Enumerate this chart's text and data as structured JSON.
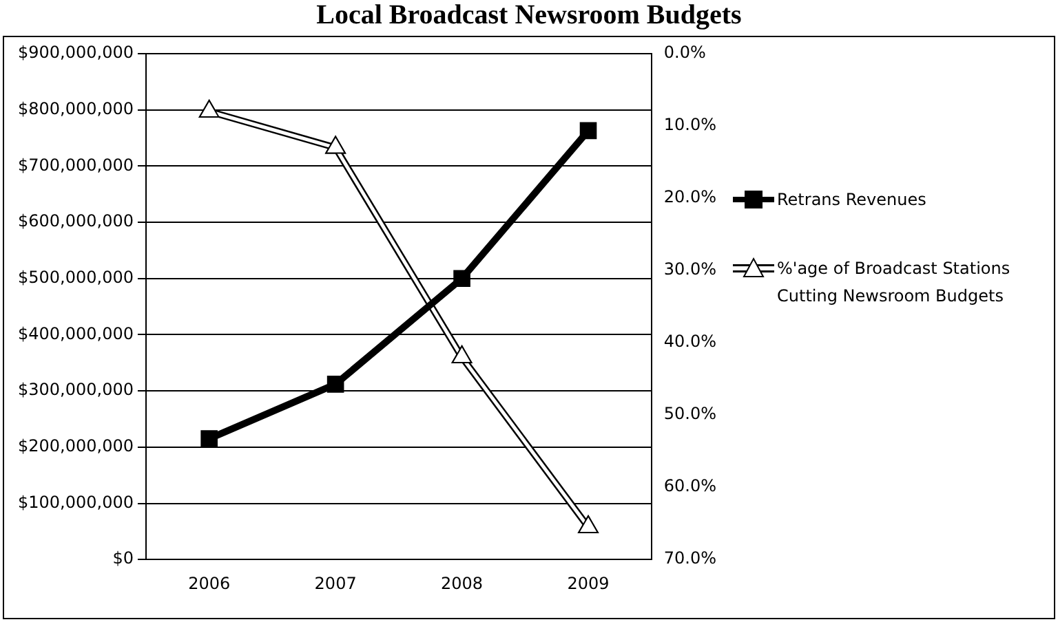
{
  "chart_data": {
    "type": "line",
    "title": "Local Broadcast Newsroom Budgets",
    "categories": [
      "2006",
      "2007",
      "2008",
      "2009"
    ],
    "series": [
      {
        "name": "Retrans Revenues",
        "color": "#000000",
        "marker": "square",
        "values": [
          215000000,
          312000000,
          500000000,
          763000000
        ]
      },
      {
        "name": "%'age of Broadcast Stations Cutting Newsroom Budgets",
        "color": "#000000",
        "marker": "triangle",
        "axis": "y2",
        "values": [
          8,
          13,
          42,
          65.5
        ]
      }
    ],
    "ylim": [
      0,
      900000000
    ],
    "yticks": [
      {
        "value": 0,
        "label": "$0"
      },
      {
        "value": 100000000,
        "label": "$100,000,000"
      },
      {
        "value": 200000000,
        "label": "$200,000,000"
      },
      {
        "value": 300000000,
        "label": "$300,000,000"
      },
      {
        "value": 400000000,
        "label": "$400,000,000"
      },
      {
        "value": 500000000,
        "label": "$500,000,000"
      },
      {
        "value": 600000000,
        "label": "$600,000,000"
      },
      {
        "value": 700000000,
        "label": "$700,000,000"
      },
      {
        "value": 800000000,
        "label": "$800,000,000"
      },
      {
        "value": 900000000,
        "label": "$900,000,000"
      }
    ],
    "y2lim": [
      70,
      0
    ],
    "y2ticks": [
      {
        "value": 0,
        "label": "0.0%"
      },
      {
        "value": 10,
        "label": "10.0%"
      },
      {
        "value": 20,
        "label": "20.0%"
      },
      {
        "value": 30,
        "label": "30.0%"
      },
      {
        "value": 40,
        "label": "40.0%"
      },
      {
        "value": 50,
        "label": "50.0%"
      },
      {
        "value": 60,
        "label": "60.0%"
      },
      {
        "value": 70,
        "label": "70.0%"
      }
    ],
    "grid": "y",
    "legend": "right",
    "line_style": "solid"
  }
}
